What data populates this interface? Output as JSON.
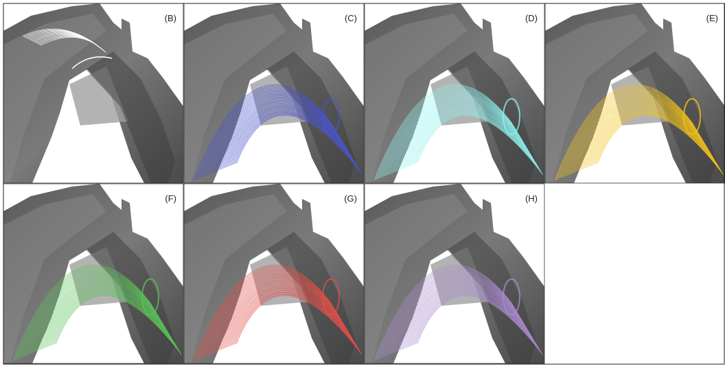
{
  "panels": [
    {
      "label": "(B)",
      "color": "#ffffff"
    },
    {
      "label": "(C)",
      "color": "#4b55c8"
    },
    {
      "label": "(D)",
      "color": "#8ff0ee"
    },
    {
      "label": "(E)",
      "color": "#f2c21a"
    },
    {
      "label": "(F)",
      "color": "#5cc25a"
    },
    {
      "label": "(G)",
      "color": "#e0504a"
    },
    {
      "label": "(H)",
      "color": "#a98bcc"
    }
  ]
}
